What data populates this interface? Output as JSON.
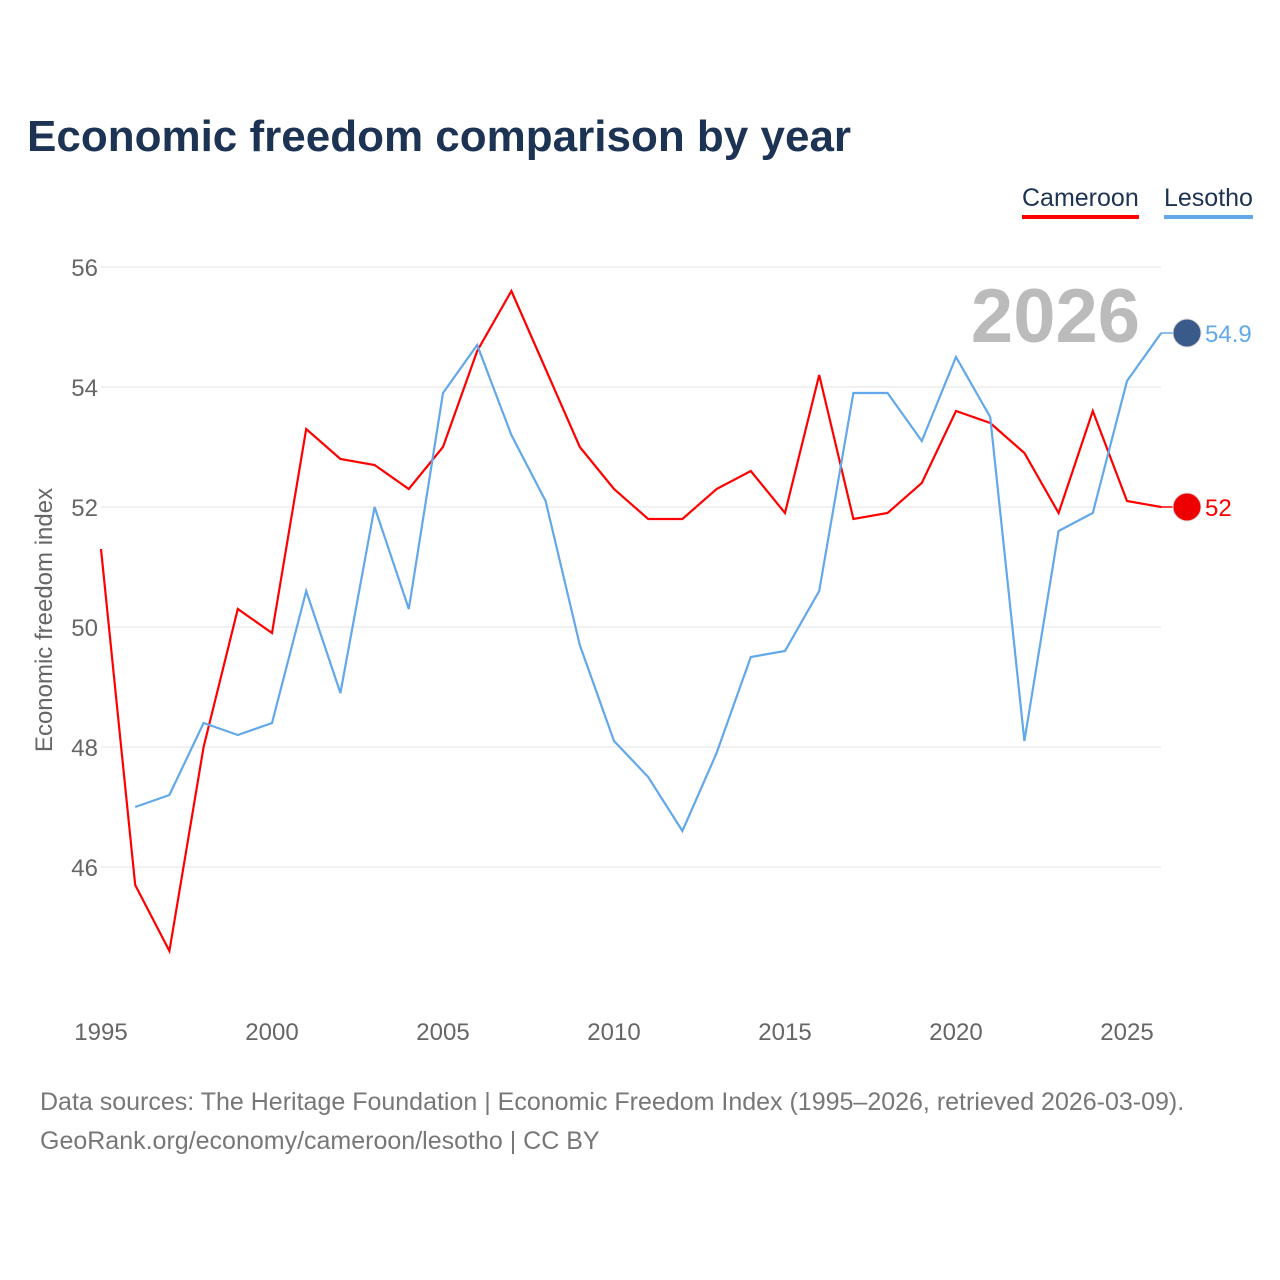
{
  "title": "Economic freedom comparison by year",
  "source_line1": "Data sources: The Heritage Foundation | Economic Freedom Index (1995–2026, retrieved 2026-03-09).",
  "source_line2": "GeoRank.org/economy/cameroon/lesotho | CC BY",
  "chart_data": {
    "type": "line",
    "title": "Economic freedom comparison by year",
    "ylabel": "Economic freedom index",
    "xlabel": "",
    "ylim": [
      44.3,
      56.4
    ],
    "xlim": [
      1995,
      2026
    ],
    "yticks": [
      46,
      48,
      50,
      52,
      54,
      56
    ],
    "xticks": [
      1995,
      2000,
      2005,
      2010,
      2015,
      2020,
      2025
    ],
    "year_label": "2026",
    "legend_position": "top-right",
    "series": [
      {
        "name": "Cameroon",
        "color": "#ff0000",
        "end_label": "52",
        "x": [
          1995,
          1996,
          1997,
          1998,
          1999,
          2000,
          2001,
          2002,
          2003,
          2004,
          2005,
          2006,
          2007,
          2008,
          2009,
          2010,
          2011,
          2012,
          2013,
          2014,
          2015,
          2016,
          2017,
          2018,
          2019,
          2020,
          2021,
          2022,
          2023,
          2024,
          2025,
          2026
        ],
        "values": [
          51.3,
          45.7,
          44.6,
          48.0,
          50.3,
          49.9,
          53.3,
          52.8,
          52.7,
          52.3,
          53.0,
          54.6,
          55.6,
          54.3,
          53.0,
          52.3,
          51.8,
          51.8,
          52.3,
          52.6,
          51.9,
          54.2,
          51.8,
          51.9,
          52.4,
          53.6,
          53.4,
          52.9,
          51.9,
          53.6,
          52.1,
          52.0
        ]
      },
      {
        "name": "Lesotho",
        "color": "#62a8ea",
        "end_label": "54.9",
        "x": [
          1996,
          1997,
          1998,
          1999,
          2000,
          2001,
          2002,
          2003,
          2004,
          2005,
          2006,
          2007,
          2008,
          2009,
          2010,
          2011,
          2012,
          2013,
          2014,
          2015,
          2016,
          2017,
          2018,
          2019,
          2020,
          2021,
          2022,
          2023,
          2024,
          2025,
          2026
        ],
        "values": [
          47.0,
          47.2,
          48.4,
          48.2,
          48.4,
          50.6,
          48.9,
          52.0,
          50.3,
          53.9,
          54.7,
          53.2,
          52.1,
          49.7,
          48.1,
          47.5,
          46.6,
          47.9,
          49.5,
          49.6,
          50.6,
          53.9,
          53.9,
          53.1,
          54.5,
          53.5,
          48.1,
          51.6,
          51.9,
          54.1,
          54.9
        ]
      }
    ]
  }
}
